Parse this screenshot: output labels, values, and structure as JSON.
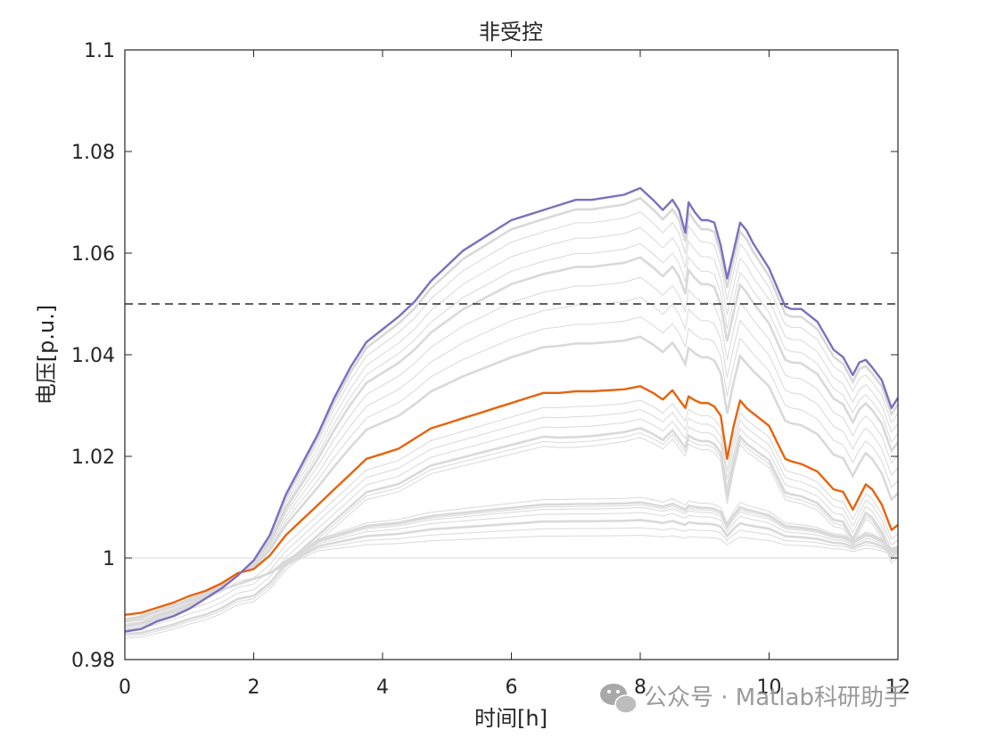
{
  "chart_data": {
    "type": "line",
    "title": "非受控",
    "xlabel": "时间[h]",
    "ylabel": "电压[p.u.]",
    "xlim": [
      0,
      12
    ],
    "ylim": [
      0.98,
      1.1
    ],
    "xticks": [
      "0",
      "2",
      "4",
      "6",
      "8",
      "10",
      "12"
    ],
    "yticks": [
      "0.98",
      "1",
      "1.02",
      "1.04",
      "1.06",
      "1.08",
      "1.1"
    ],
    "grid": false,
    "colors": {
      "max": "#7E6FC0",
      "mid": "#E8620C",
      "background": "#D9D9D9",
      "limit": "#000000"
    },
    "limit_line": {
      "y": 1.05,
      "style": "dashed"
    },
    "max_series": {
      "x": [
        0,
        0.25,
        0.5,
        0.75,
        1,
        1.25,
        1.5,
        1.75,
        2,
        2.25,
        2.5,
        2.75,
        3,
        3.25,
        3.5,
        3.75,
        4,
        4.25,
        4.5,
        4.75,
        5,
        5.25,
        5.5,
        5.75,
        6,
        6.25,
        6.5,
        6.75,
        7,
        7.25,
        7.5,
        7.75,
        8,
        8.2,
        8.35,
        8.5,
        8.6,
        8.7,
        8.75,
        8.85,
        8.95,
        9.05,
        9.15,
        9.25,
        9.35,
        9.45,
        9.55,
        9.65,
        9.75,
        10,
        10.25,
        10.35,
        10.5,
        10.75,
        11,
        11.15,
        11.3,
        11.4,
        11.5,
        11.6,
        11.75,
        11.9,
        12
      ],
      "y": [
        0.9855,
        0.986,
        0.9875,
        0.9885,
        0.99,
        0.992,
        0.994,
        0.9965,
        0.9995,
        1.0045,
        1.0125,
        1.0185,
        1.0245,
        1.0315,
        1.0375,
        1.0425,
        1.045,
        1.0475,
        1.0505,
        1.0545,
        1.0575,
        1.0605,
        1.0625,
        1.0645,
        1.0665,
        1.0675,
        1.0685,
        1.0695,
        1.0705,
        1.0705,
        1.071,
        1.0715,
        1.0728,
        1.0705,
        1.0685,
        1.0705,
        1.0685,
        1.064,
        1.07,
        1.068,
        1.0665,
        1.0665,
        1.066,
        1.0615,
        1.055,
        1.0605,
        1.066,
        1.0645,
        1.062,
        1.057,
        1.0495,
        1.049,
        1.049,
        1.0465,
        1.041,
        1.0395,
        1.036,
        1.0385,
        1.039,
        1.0375,
        1.035,
        1.0295,
        1.0315
      ]
    },
    "mid_series": {
      "x": [
        0,
        0.25,
        0.5,
        0.75,
        1,
        1.25,
        1.5,
        1.75,
        2,
        2.25,
        2.5,
        2.75,
        3,
        3.25,
        3.5,
        3.75,
        4,
        4.25,
        4.5,
        4.75,
        5,
        5.25,
        5.5,
        5.75,
        6,
        6.25,
        6.5,
        6.75,
        7,
        7.25,
        7.5,
        7.75,
        8,
        8.2,
        8.35,
        8.5,
        8.6,
        8.7,
        8.75,
        8.85,
        8.95,
        9.05,
        9.15,
        9.25,
        9.35,
        9.45,
        9.55,
        9.65,
        9.75,
        10,
        10.25,
        10.35,
        10.5,
        10.75,
        11,
        11.15,
        11.3,
        11.4,
        11.5,
        11.6,
        11.75,
        11.9,
        12
      ],
      "y": [
        0.9888,
        0.9892,
        0.9902,
        0.9912,
        0.9925,
        0.9935,
        0.995,
        0.997,
        0.9978,
        1.0005,
        1.0045,
        1.0075,
        1.0105,
        1.0135,
        1.0165,
        1.0195,
        1.0205,
        1.0215,
        1.0235,
        1.0255,
        1.0265,
        1.0275,
        1.0285,
        1.0295,
        1.0305,
        1.0315,
        1.0325,
        1.0325,
        1.0328,
        1.0328,
        1.033,
        1.0332,
        1.0338,
        1.0325,
        1.0312,
        1.033,
        1.0312,
        1.0295,
        1.0318,
        1.031,
        1.0305,
        1.0305,
        1.0298,
        1.028,
        1.0195,
        1.026,
        1.031,
        1.0295,
        1.0285,
        1.026,
        1.0195,
        1.019,
        1.0185,
        1.017,
        1.0135,
        1.013,
        1.0095,
        1.012,
        1.0145,
        1.0135,
        1.0105,
        1.0055,
        1.0065
      ]
    }
  },
  "watermark": {
    "icon": "wechat-icon",
    "text": "公众号 · Matlab科研助手"
  }
}
